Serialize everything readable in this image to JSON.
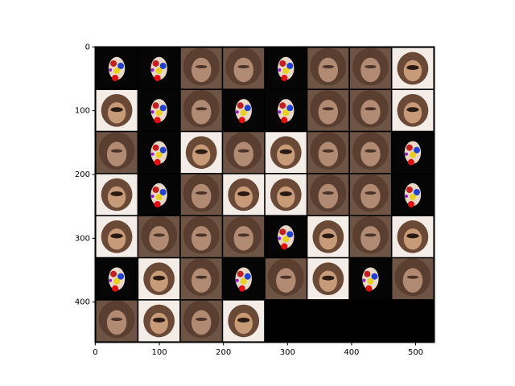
{
  "chart_data": {
    "type": "image",
    "xlim": [
      -0.5,
      529.5
    ],
    "ylim": [
      463.5,
      -0.5
    ],
    "xticks": [
      0,
      100,
      200,
      300,
      400,
      500
    ],
    "yticks": [
      0,
      100,
      200,
      300,
      400
    ]
  }
}
